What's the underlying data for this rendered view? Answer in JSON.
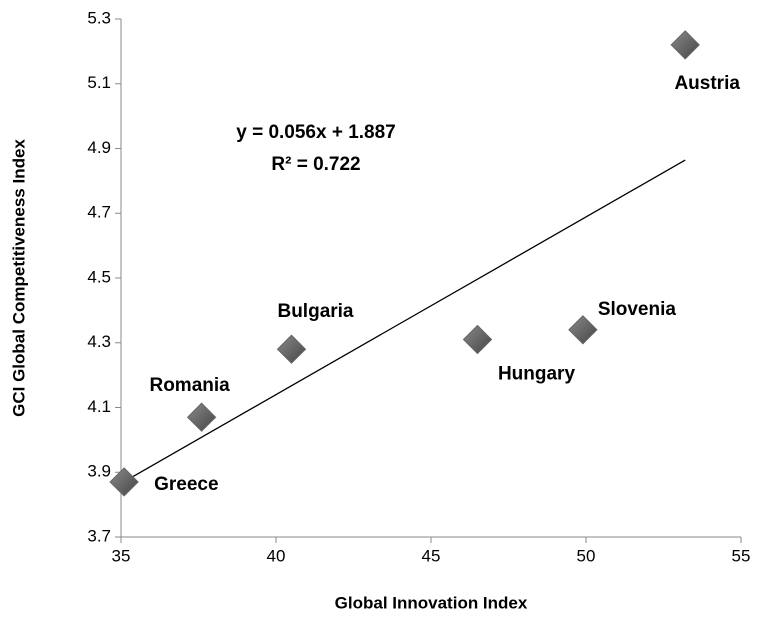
{
  "chart_data": {
    "type": "scatter",
    "x_label": "Global Innovation Index",
    "y_label": "GCI Global Competitiveness Index",
    "annotations": [
      "y = 0.056x + 1.887",
      "R² = 0.722"
    ],
    "series": [
      {
        "color": "#666666",
        "labels": [
          "Greece",
          "Romania",
          "Bulgaria",
          "Hungary",
          "Slovenia",
          "Austria"
        ],
        "x": [
          35.1,
          37.6,
          40.5,
          46.5,
          49.9,
          53.2
        ],
        "values": [
          3.87,
          4.07,
          4.28,
          4.31,
          4.34,
          5.22
        ]
      }
    ],
    "trendline": true,
    "xlim": [
      35,
      55
    ],
    "xticks": [
      35,
      40,
      45,
      50,
      55
    ],
    "ylim": [
      3.7,
      5.3
    ],
    "yticks": [
      3.7,
      3.9,
      4.1,
      4.3,
      4.5,
      4.7,
      4.9,
      5.1,
      5.3
    ]
  }
}
